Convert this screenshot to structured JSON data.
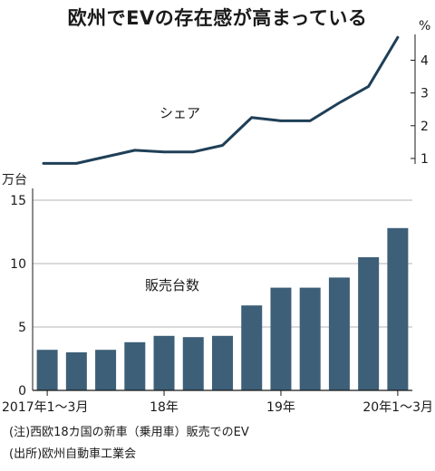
{
  "title": "欧州でEVの存在感が高まっている",
  "notes": [
    "(注)西欧18カ国の新車（乗用車）販売でのEV",
    "(出所)欧州自動車工業会"
  ],
  "chart_data": [
    {
      "type": "line",
      "series": [
        {
          "name": "シェア",
          "values": [
            0.85,
            0.85,
            1.05,
            1.25,
            1.2,
            1.2,
            1.4,
            2.25,
            2.15,
            2.15,
            2.7,
            3.2,
            4.7
          ]
        }
      ],
      "ylabel": "%",
      "yticks": [
        1,
        2,
        3,
        4
      ],
      "ylim": [
        0.5,
        4.9
      ],
      "axis_side": "right",
      "grid": false
    },
    {
      "type": "bar",
      "series": [
        {
          "name": "販売台数",
          "values": [
            3.2,
            3.0,
            3.2,
            3.8,
            4.3,
            4.2,
            4.3,
            6.7,
            8.1,
            8.1,
            8.9,
            10.5,
            12.8
          ]
        }
      ],
      "ylabel": "万台",
      "yticks": [
        0,
        5,
        10,
        15
      ],
      "ylim": [
        0,
        15.5
      ],
      "grid": true,
      "bar_color": "#3d5f78"
    }
  ],
  "x_axis": {
    "num_quarters": 13,
    "labels": [
      {
        "index": 0,
        "text": "2017年1～3月"
      },
      {
        "index": 4,
        "text": "18年"
      },
      {
        "index": 8,
        "text": "19年"
      },
      {
        "index": 12,
        "text": "20年1～3月"
      }
    ]
  }
}
